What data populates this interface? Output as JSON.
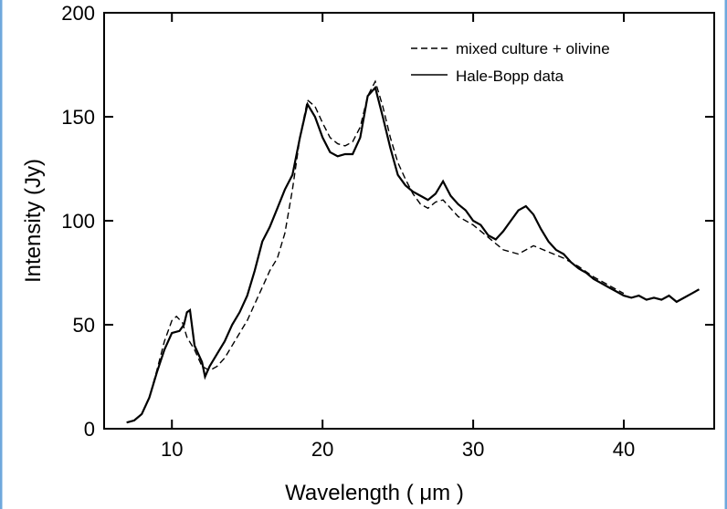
{
  "chart_data": {
    "type": "line",
    "xlabel": "Wavelength ( μm )",
    "ylabel": "Intensity (Jy)",
    "xlim": [
      5.5,
      46
    ],
    "ylim": [
      0,
      200
    ],
    "x_ticks": [
      10,
      20,
      30,
      40
    ],
    "y_ticks": [
      0,
      50,
      100,
      150,
      200
    ],
    "grid": false,
    "legend_position": "top-right",
    "series": [
      {
        "name": "mixed culture + olivine",
        "style": "dashed",
        "color": "#000000",
        "x": [
          7,
          7.5,
          8,
          8.5,
          9,
          9.5,
          10,
          10.3,
          10.7,
          11,
          11.5,
          12,
          12.5,
          13,
          13.5,
          14,
          14.5,
          15,
          15.5,
          16,
          16.5,
          17,
          17.5,
          18,
          18.5,
          19,
          19.5,
          20,
          20.5,
          21,
          21.5,
          22,
          22.5,
          23,
          23.5,
          24,
          24.5,
          25,
          25.5,
          26,
          26.5,
          27,
          27.5,
          28,
          28.5,
          29,
          29.5,
          30,
          31,
          32,
          33,
          34,
          35,
          36,
          37,
          38,
          39,
          40
        ],
        "y": [
          3,
          4,
          7,
          15,
          28,
          42,
          52,
          54,
          51,
          44,
          38,
          30,
          28,
          30,
          34,
          40,
          46,
          52,
          60,
          68,
          76,
          82,
          94,
          115,
          140,
          158,
          155,
          147,
          140,
          137,
          136,
          138,
          145,
          160,
          167,
          155,
          140,
          128,
          120,
          113,
          108,
          106,
          109,
          110,
          106,
          102,
          100,
          98,
          92,
          86,
          84,
          88,
          85,
          82,
          78,
          73,
          69,
          65
        ]
      },
      {
        "name": "Hale-Bopp data",
        "style": "solid",
        "color": "#000000",
        "x": [
          7,
          7.5,
          8,
          8.5,
          9,
          9.5,
          10,
          10.5,
          10.8,
          11,
          11.2,
          11.5,
          12,
          12.2,
          12.5,
          13,
          13.5,
          14,
          14.5,
          15,
          15.5,
          16,
          16.5,
          17,
          17.5,
          18,
          18.5,
          19,
          19.5,
          20,
          20.5,
          21,
          21.5,
          22,
          22.5,
          23,
          23.5,
          24,
          24.5,
          25,
          25.5,
          26,
          26.5,
          27,
          27.5,
          28,
          28.5,
          29,
          29.5,
          30,
          30.5,
          31,
          31.5,
          32,
          32.5,
          33,
          33.5,
          34,
          34.5,
          35,
          35.5,
          36,
          36.5,
          37,
          37.5,
          38,
          38.5,
          39,
          39.5,
          40,
          40.5,
          41,
          41.5,
          42,
          42.5,
          43,
          43.5,
          44,
          44.5,
          45
        ],
        "y": [
          3,
          4,
          7,
          15,
          27,
          38,
          46,
          47,
          50,
          56,
          57,
          40,
          32,
          25,
          30,
          36,
          42,
          50,
          56,
          64,
          76,
          90,
          97,
          106,
          115,
          122,
          140,
          156,
          150,
          140,
          133,
          131,
          132,
          132,
          140,
          160,
          164,
          150,
          135,
          122,
          117,
          114,
          112,
          110,
          113,
          119,
          112,
          108,
          105,
          100,
          98,
          93,
          91,
          95,
          100,
          105,
          107,
          103,
          96,
          90,
          86,
          84,
          80,
          77,
          75,
          72,
          70,
          68,
          66,
          64,
          63,
          64,
          62,
          63,
          62,
          64,
          61,
          63,
          65,
          67
        ]
      }
    ]
  }
}
